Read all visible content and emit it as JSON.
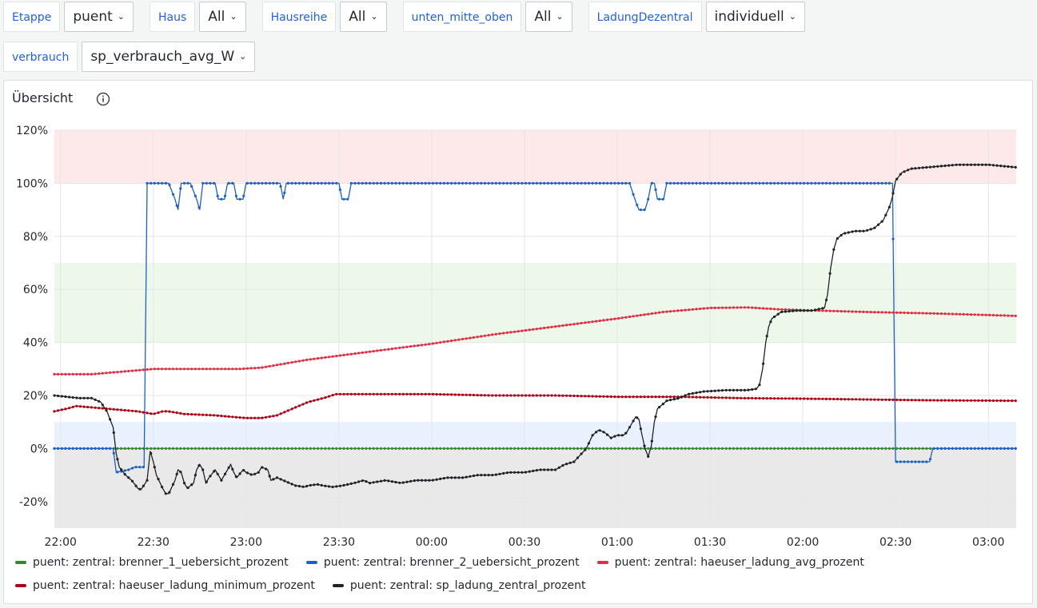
{
  "variables": {
    "row1": [
      {
        "label": "Etappe",
        "value": "puent"
      },
      {
        "label": "Haus",
        "value": "All"
      },
      {
        "label": "Hausreihe",
        "value": "All"
      },
      {
        "label": "unten_mitte_oben",
        "value": "All"
      },
      {
        "label": "LadungDezentral",
        "value": "individuell"
      }
    ],
    "row2": [
      {
        "label": "verbrauch",
        "value": "sp_verbrauch_avg_W"
      }
    ]
  },
  "panel": {
    "title": "Übersicht",
    "info_icon": "info-circle-icon"
  },
  "colors": {
    "brenner_1": "#37872d",
    "brenner_2": "#1f60c4",
    "avg": "#e02f44",
    "minimum": "#ad0317",
    "zentral": "#202226",
    "band_red": "#fde8ea",
    "band_green": "#eef8ea",
    "band_blue": "#eaf1fe",
    "band_grey": "#e9e9e9"
  },
  "chart_data": {
    "type": "line",
    "y_axis": {
      "min": -30,
      "max": 120,
      "ticks": [
        "120%",
        "100%",
        "80%",
        "60%",
        "40%",
        "20%",
        "0%",
        "-20%"
      ],
      "tick_values": [
        120,
        100,
        80,
        60,
        40,
        20,
        0,
        -20
      ]
    },
    "x_axis": {
      "ticks": [
        "22:00",
        "22:30",
        "23:00",
        "23:30",
        "00:00",
        "00:30",
        "01:00",
        "01:30",
        "02:00",
        "02:30",
        "03:00"
      ],
      "tick_minutes": [
        0,
        30,
        60,
        90,
        120,
        150,
        180,
        210,
        240,
        270,
        300
      ],
      "start": "21:58",
      "end": "03:07"
    },
    "threshold_bands": [
      {
        "from": 100,
        "to": 120,
        "color": "band_red"
      },
      {
        "from": 40,
        "to": 70,
        "color": "band_green"
      },
      {
        "from": 0,
        "to": 10,
        "color": "band_blue"
      },
      {
        "from": -30,
        "to": 0,
        "color": "band_grey"
      }
    ],
    "series": [
      {
        "name": "puent: zentral: brenner_1_uebersicht_prozent",
        "color": "brenner_1",
        "points": [
          [
            -2,
            0
          ],
          [
            309,
            0
          ]
        ]
      },
      {
        "name": "puent: zentral: brenner_2_uebersicht_prozent",
        "color": "brenner_2",
        "points": [
          [
            -2,
            0
          ],
          [
            17,
            0
          ],
          [
            18,
            -9
          ],
          [
            22,
            -8
          ],
          [
            24,
            -7
          ],
          [
            27,
            -7
          ],
          [
            28,
            100
          ],
          [
            35,
            100
          ],
          [
            37,
            94
          ],
          [
            38,
            90
          ],
          [
            39,
            100
          ],
          [
            42,
            100
          ],
          [
            44,
            94
          ],
          [
            45,
            90
          ],
          [
            46,
            100
          ],
          [
            50,
            100
          ],
          [
            51,
            94
          ],
          [
            53,
            94
          ],
          [
            54,
            100
          ],
          [
            56,
            100
          ],
          [
            57,
            94
          ],
          [
            59,
            94
          ],
          [
            60,
            100
          ],
          [
            71,
            100
          ],
          [
            72,
            94
          ],
          [
            73,
            100
          ],
          [
            90,
            100
          ],
          [
            91,
            94
          ],
          [
            93,
            94
          ],
          [
            94,
            100
          ],
          [
            184,
            100
          ],
          [
            186,
            93
          ],
          [
            187,
            90
          ],
          [
            189,
            90
          ],
          [
            190,
            94
          ],
          [
            191,
            100
          ],
          [
            192,
            100
          ],
          [
            193,
            94
          ],
          [
            195,
            94
          ],
          [
            196,
            100
          ],
          [
            269,
            100
          ],
          [
            270,
            -5
          ],
          [
            281,
            -5
          ],
          [
            282,
            0
          ],
          [
            309,
            0
          ]
        ]
      },
      {
        "name": "puent: zentral: haeuser_ladung_avg_prozent",
        "color": "avg",
        "points": [
          [
            -2,
            28
          ],
          [
            10,
            28
          ],
          [
            20,
            29
          ],
          [
            30,
            30
          ],
          [
            45,
            30
          ],
          [
            58,
            30
          ],
          [
            65,
            30.5
          ],
          [
            70,
            31.5
          ],
          [
            80,
            33.5
          ],
          [
            90,
            35
          ],
          [
            100,
            36.5
          ],
          [
            120,
            39.5
          ],
          [
            140,
            43
          ],
          [
            160,
            46
          ],
          [
            180,
            49
          ],
          [
            195,
            51.5
          ],
          [
            210,
            53
          ],
          [
            222,
            53.2
          ],
          [
            232,
            52.5
          ],
          [
            245,
            52
          ],
          [
            260,
            51.5
          ],
          [
            280,
            51
          ],
          [
            295,
            50.5
          ],
          [
            309,
            50
          ]
        ]
      },
      {
        "name": "puent: zentral: haeuser_ladung_minimum_prozent",
        "color": "minimum",
        "points": [
          [
            -2,
            14
          ],
          [
            2,
            15
          ],
          [
            5,
            16
          ],
          [
            10,
            15.5
          ],
          [
            15,
            15
          ],
          [
            20,
            14.5
          ],
          [
            25,
            14
          ],
          [
            30,
            13
          ],
          [
            33,
            14
          ],
          [
            35,
            14
          ],
          [
            40,
            13
          ],
          [
            50,
            12.5
          ],
          [
            55,
            12
          ],
          [
            60,
            11.5
          ],
          [
            65,
            11.5
          ],
          [
            70,
            12.5
          ],
          [
            75,
            15
          ],
          [
            80,
            17.5
          ],
          [
            85,
            19
          ],
          [
            89,
            20.5
          ],
          [
            100,
            20.5
          ],
          [
            120,
            20.5
          ],
          [
            140,
            20
          ],
          [
            160,
            20
          ],
          [
            180,
            19.5
          ],
          [
            200,
            19.5
          ],
          [
            220,
            19
          ],
          [
            240,
            18.8
          ],
          [
            260,
            18.5
          ],
          [
            280,
            18.2
          ],
          [
            309,
            18
          ]
        ]
      },
      {
        "name": "puent: zentral: sp_ladung_zentral_prozent",
        "color": "zentral",
        "points": [
          [
            -2,
            20
          ],
          [
            2,
            19.5
          ],
          [
            6,
            19
          ],
          [
            10,
            19
          ],
          [
            13,
            17.5
          ],
          [
            15,
            14
          ],
          [
            17,
            8
          ],
          [
            18,
            -2
          ],
          [
            19,
            -7
          ],
          [
            21,
            -10
          ],
          [
            23,
            -12
          ],
          [
            25,
            -15
          ],
          [
            26,
            -15.5
          ],
          [
            28,
            -12
          ],
          [
            29,
            -1
          ],
          [
            30,
            -5
          ],
          [
            31,
            -10
          ],
          [
            33,
            -15
          ],
          [
            34,
            -17
          ],
          [
            35,
            -17
          ],
          [
            37,
            -12
          ],
          [
            38,
            -8
          ],
          [
            39,
            -9
          ],
          [
            40,
            -13
          ],
          [
            41,
            -15
          ],
          [
            43,
            -13
          ],
          [
            44,
            -8
          ],
          [
            45,
            -6
          ],
          [
            46,
            -8
          ],
          [
            47,
            -13
          ],
          [
            48,
            -11
          ],
          [
            50,
            -8
          ],
          [
            51,
            -10
          ],
          [
            52,
            -12
          ],
          [
            54,
            -8
          ],
          [
            55,
            -6
          ],
          [
            56,
            -9
          ],
          [
            57,
            -11
          ],
          [
            59,
            -8
          ],
          [
            60,
            -9
          ],
          [
            62,
            -10
          ],
          [
            64,
            -9
          ],
          [
            65,
            -7
          ],
          [
            67,
            -8
          ],
          [
            68,
            -12
          ],
          [
            70,
            -11
          ],
          [
            72,
            -12
          ],
          [
            74,
            -13
          ],
          [
            76,
            -14
          ],
          [
            79,
            -14.5
          ],
          [
            80,
            -14
          ],
          [
            83,
            -13.5
          ],
          [
            85,
            -14
          ],
          [
            88,
            -14.5
          ],
          [
            91,
            -14
          ],
          [
            95,
            -13
          ],
          [
            98,
            -12
          ],
          [
            100,
            -13
          ],
          [
            105,
            -12
          ],
          [
            110,
            -13
          ],
          [
            115,
            -12
          ],
          [
            120,
            -12
          ],
          [
            125,
            -11
          ],
          [
            130,
            -11
          ],
          [
            135,
            -10
          ],
          [
            140,
            -10
          ],
          [
            145,
            -9
          ],
          [
            150,
            -9
          ],
          [
            155,
            -8
          ],
          [
            160,
            -8
          ],
          [
            163,
            -6
          ],
          [
            166,
            -5
          ],
          [
            170,
            0
          ],
          [
            172,
            5
          ],
          [
            174,
            7
          ],
          [
            176,
            6
          ],
          [
            178,
            4
          ],
          [
            180,
            5
          ],
          [
            182,
            5
          ],
          [
            183,
            6
          ],
          [
            185,
            10
          ],
          [
            186,
            12
          ],
          [
            187,
            11
          ],
          [
            188,
            5
          ],
          [
            189,
            0
          ],
          [
            190,
            -3
          ],
          [
            191,
            1
          ],
          [
            192,
            10
          ],
          [
            193,
            15
          ],
          [
            196,
            18
          ],
          [
            200,
            19
          ],
          [
            203,
            20.5
          ],
          [
            208,
            21.5
          ],
          [
            215,
            22
          ],
          [
            222,
            22
          ],
          [
            225,
            22.5
          ],
          [
            226,
            24
          ],
          [
            227,
            30
          ],
          [
            228,
            40
          ],
          [
            229,
            46
          ],
          [
            230,
            49
          ],
          [
            233,
            51.5
          ],
          [
            238,
            52
          ],
          [
            243,
            52
          ],
          [
            247,
            53
          ],
          [
            248,
            58
          ],
          [
            249,
            68
          ],
          [
            250,
            75
          ],
          [
            251,
            79
          ],
          [
            253,
            81
          ],
          [
            257,
            82
          ],
          [
            260,
            82
          ],
          [
            263,
            83
          ],
          [
            266,
            86
          ],
          [
            268,
            91
          ],
          [
            269,
            95
          ],
          [
            270,
            101
          ],
          [
            272,
            104
          ],
          [
            275,
            105.5
          ],
          [
            280,
            106
          ],
          [
            290,
            107
          ],
          [
            300,
            107
          ],
          [
            309,
            106
          ]
        ]
      }
    ]
  }
}
